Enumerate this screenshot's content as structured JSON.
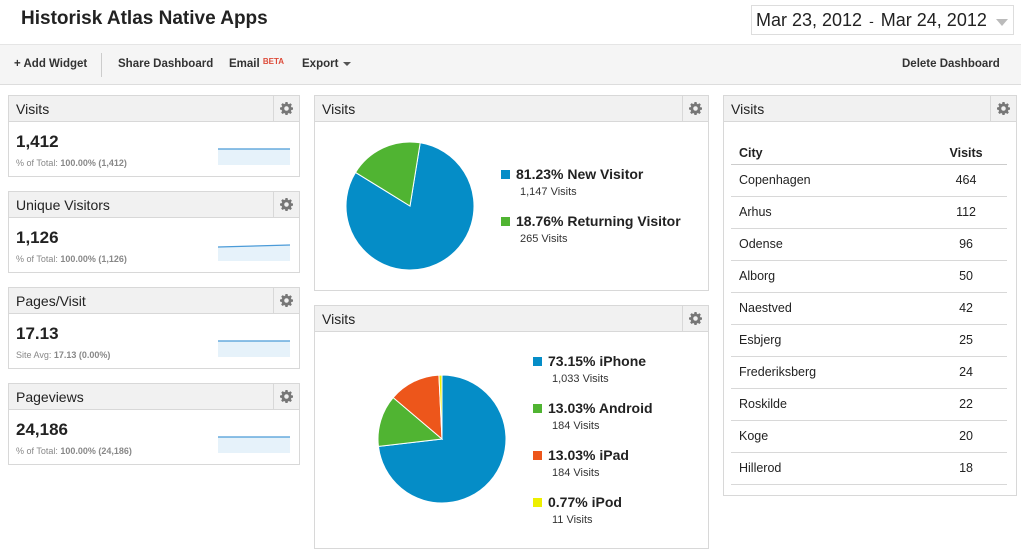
{
  "header": {
    "title": "Historisk Atlas Native Apps",
    "date_start": "Mar 23, 2012",
    "date_sep": "-",
    "date_end": "Mar 24, 2012"
  },
  "toolbar": {
    "add_widget": "+ Add Widget",
    "share_dashboard": "Share Dashboard",
    "email": "Email",
    "email_badge": "BETA",
    "export": "Export",
    "delete_dashboard": "Delete Dashboard"
  },
  "metrics": [
    {
      "title": "Visits",
      "value": "1,412",
      "sub_label": "% of Total:",
      "sub_value": "100.00% (1,412)"
    },
    {
      "title": "Unique Visitors",
      "value": "1,126",
      "sub_label": "% of Total:",
      "sub_value": "100.00% (1,126)"
    },
    {
      "title": "Pages/Visit",
      "value": "17.13",
      "sub_label": "Site Avg:",
      "sub_value": "17.13 (0.00%)"
    },
    {
      "title": "Pageviews",
      "value": "24,186",
      "sub_label": "% of Total:",
      "sub_value": "100.00% (24,186)"
    }
  ],
  "pie1": {
    "title": "Visits",
    "legend": [
      {
        "label": "81.23% New Visitor",
        "sub": "1,147 Visits",
        "color": "#058dc7"
      },
      {
        "label": "18.76% Returning Visitor",
        "sub": "265 Visits",
        "color": "#50b432"
      }
    ]
  },
  "pie2": {
    "title": "Visits",
    "legend": [
      {
        "label": "73.15% iPhone",
        "sub": "1,033 Visits",
        "color": "#058dc7"
      },
      {
        "label": "13.03% Android",
        "sub": "184 Visits",
        "color": "#50b432"
      },
      {
        "label": "13.03% iPad",
        "sub": "184 Visits",
        "color": "#ed561b"
      },
      {
        "label": "0.77% iPod",
        "sub": "11 Visits",
        "color": "#edef00"
      }
    ]
  },
  "city_table": {
    "title": "Visits",
    "col_city": "City",
    "col_visits": "Visits",
    "rows": [
      {
        "city": "Copenhagen",
        "visits": "464"
      },
      {
        "city": "Arhus",
        "visits": "112"
      },
      {
        "city": "Odense",
        "visits": "96"
      },
      {
        "city": "Alborg",
        "visits": "50"
      },
      {
        "city": "Naestved",
        "visits": "42"
      },
      {
        "city": "Esbjerg",
        "visits": "25"
      },
      {
        "city": "Frederiksberg",
        "visits": "24"
      },
      {
        "city": "Roskilde",
        "visits": "22"
      },
      {
        "city": "Koge",
        "visits": "20"
      },
      {
        "city": "Hillerod",
        "visits": "18"
      }
    ]
  },
  "chart_data": [
    {
      "type": "pie",
      "title": "Visits",
      "categories": [
        "New Visitor",
        "Returning Visitor"
      ],
      "values": [
        81.23,
        18.76
      ],
      "colors": [
        "#058dc7",
        "#50b432"
      ]
    },
    {
      "type": "pie",
      "title": "Visits",
      "categories": [
        "iPhone",
        "Android",
        "iPad",
        "iPod"
      ],
      "values": [
        73.15,
        13.03,
        13.03,
        0.77
      ],
      "colors": [
        "#058dc7",
        "#50b432",
        "#ed561b",
        "#edef00"
      ]
    }
  ]
}
